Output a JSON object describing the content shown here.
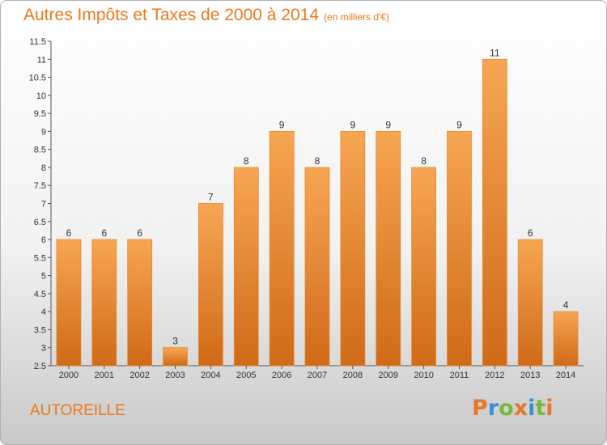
{
  "title": "Autres Impôts et Taxes de 2000 à 2014",
  "unit_label": "(en milliers d'€)",
  "commune": "AUTOREILLE",
  "logo": {
    "letters": [
      "P",
      "r",
      "o",
      "x",
      "i",
      "t",
      "i"
    ],
    "colors": [
      "#e8762b",
      "#3c8ed8",
      "#79b83a",
      "#e8762b",
      "#3c8ed8",
      "#79b83a",
      "#e8762b"
    ]
  },
  "colors": {
    "accent": "#ea7a1c",
    "bar_top": "#f7a653",
    "bar_bottom": "#cf6a18"
  },
  "chart_data": {
    "type": "bar",
    "categories": [
      "2000",
      "2001",
      "2002",
      "2003",
      "2004",
      "2005",
      "2006",
      "2007",
      "2008",
      "2009",
      "2010",
      "2011",
      "2012",
      "2013",
      "2014"
    ],
    "values": [
      6,
      6,
      6,
      3,
      7,
      8,
      9,
      8,
      9,
      9,
      8,
      9,
      11,
      6,
      4
    ],
    "title": "Autres Impôts et Taxes de 2000 à 2014",
    "xlabel": "",
    "ylabel": "",
    "ylim": [
      2.5,
      11.5
    ],
    "yticks": [
      "2.5",
      "3",
      "3.5",
      "4",
      "4.5",
      "5",
      "5.5",
      "6",
      "6.5",
      "7",
      "7.5",
      "8",
      "8.5",
      "9",
      "9.5",
      "10",
      "10.5",
      "11",
      "11.5"
    ],
    "grid": false,
    "legend": "none"
  }
}
